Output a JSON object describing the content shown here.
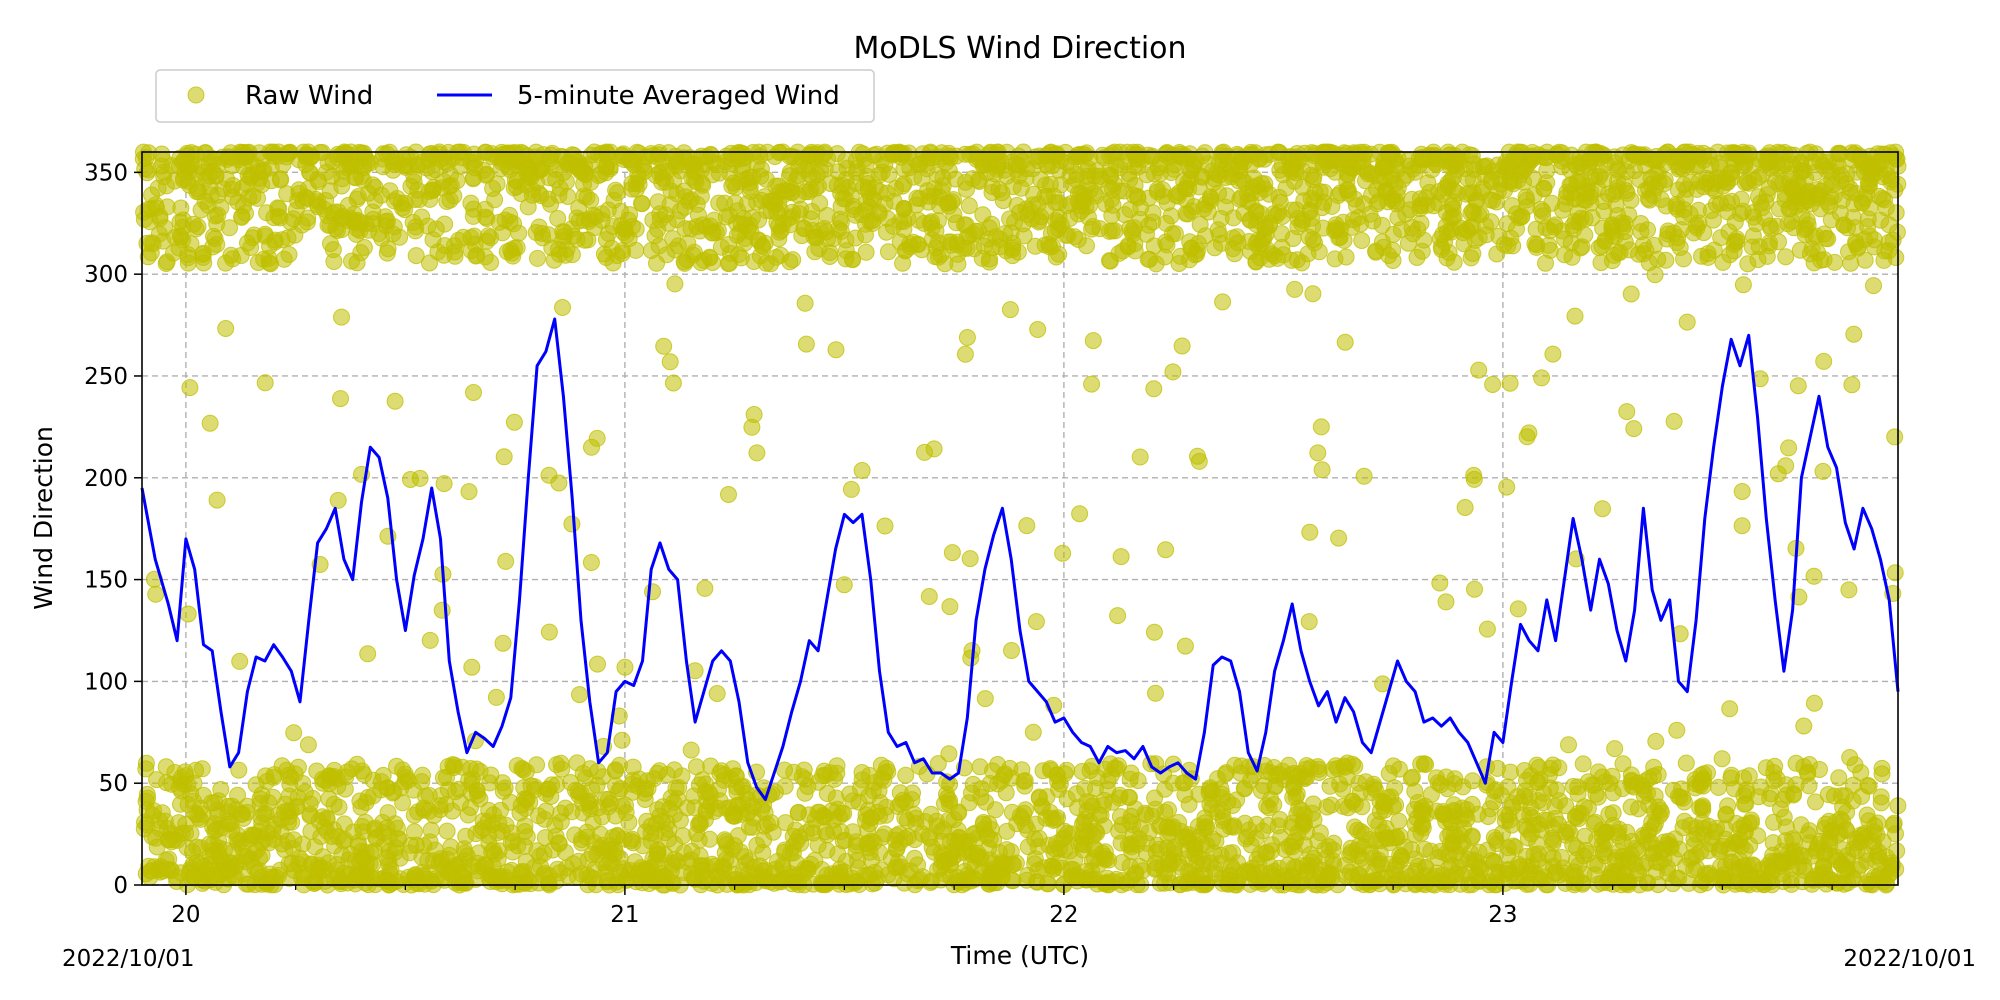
{
  "chart_data": {
    "type": "scatter",
    "title": "MoDLS Wind Direction",
    "xlabel": "Time (UTC)",
    "ylabel": "Wind Direction",
    "x_unit": "day of month (UTC), 2022/10",
    "xlim": [
      19.9,
      23.9
    ],
    "ylim": [
      0,
      360
    ],
    "x_ticks": [
      20,
      21,
      22,
      23
    ],
    "x_tick_labels": [
      "20",
      "21",
      "22",
      "23"
    ],
    "x_minor_ticks": [
      20.25,
      20.5,
      20.75,
      21.25,
      21.5,
      21.75,
      22.25,
      22.5,
      22.75,
      23.25,
      23.5,
      23.75
    ],
    "y_ticks": [
      0,
      50,
      100,
      150,
      200,
      250,
      300,
      350
    ],
    "corner_labels": {
      "left": "2022/10/01",
      "right": "2022/10/01"
    },
    "grid": true,
    "legend_position": "top-left",
    "series": [
      {
        "name": "Raw Wind",
        "kind": "scatter",
        "color": "#bfbf00",
        "alpha": 0.55,
        "description": "Dense raw points clustered near 0-60 and 300-360 degrees across the whole period, with sparse scattered points between"
      },
      {
        "name": "5-minute Averaged Wind",
        "kind": "line",
        "color": "#0000ff",
        "points": [
          [
            19.9,
            195
          ],
          [
            19.93,
            160
          ],
          [
            19.96,
            138
          ],
          [
            19.98,
            120
          ],
          [
            20.0,
            170
          ],
          [
            20.02,
            155
          ],
          [
            20.04,
            118
          ],
          [
            20.06,
            115
          ],
          [
            20.08,
            85
          ],
          [
            20.1,
            58
          ],
          [
            20.12,
            65
          ],
          [
            20.14,
            95
          ],
          [
            20.16,
            112
          ],
          [
            20.18,
            110
          ],
          [
            20.2,
            118
          ],
          [
            20.22,
            112
          ],
          [
            20.24,
            105
          ],
          [
            20.26,
            90
          ],
          [
            20.28,
            130
          ],
          [
            20.3,
            168
          ],
          [
            20.32,
            175
          ],
          [
            20.34,
            185
          ],
          [
            20.36,
            160
          ],
          [
            20.38,
            150
          ],
          [
            20.4,
            188
          ],
          [
            20.42,
            215
          ],
          [
            20.44,
            210
          ],
          [
            20.46,
            190
          ],
          [
            20.48,
            150
          ],
          [
            20.5,
            125
          ],
          [
            20.52,
            152
          ],
          [
            20.54,
            170
          ],
          [
            20.56,
            195
          ],
          [
            20.58,
            170
          ],
          [
            20.6,
            110
          ],
          [
            20.62,
            85
          ],
          [
            20.64,
            65
          ],
          [
            20.66,
            75
          ],
          [
            20.68,
            72
          ],
          [
            20.7,
            68
          ],
          [
            20.72,
            78
          ],
          [
            20.74,
            92
          ],
          [
            20.76,
            140
          ],
          [
            20.78,
            200
          ],
          [
            20.8,
            255
          ],
          [
            20.82,
            262
          ],
          [
            20.84,
            278
          ],
          [
            20.86,
            240
          ],
          [
            20.88,
            190
          ],
          [
            20.9,
            130
          ],
          [
            20.92,
            90
          ],
          [
            20.94,
            60
          ],
          [
            20.96,
            65
          ],
          [
            20.98,
            95
          ],
          [
            21.0,
            100
          ],
          [
            21.02,
            98
          ],
          [
            21.04,
            110
          ],
          [
            21.06,
            155
          ],
          [
            21.08,
            168
          ],
          [
            21.1,
            155
          ],
          [
            21.12,
            150
          ],
          [
            21.14,
            110
          ],
          [
            21.16,
            80
          ],
          [
            21.18,
            95
          ],
          [
            21.2,
            110
          ],
          [
            21.22,
            115
          ],
          [
            21.24,
            110
          ],
          [
            21.26,
            90
          ],
          [
            21.28,
            60
          ],
          [
            21.3,
            48
          ],
          [
            21.32,
            42
          ],
          [
            21.34,
            55
          ],
          [
            21.36,
            68
          ],
          [
            21.38,
            85
          ],
          [
            21.4,
            100
          ],
          [
            21.42,
            120
          ],
          [
            21.44,
            115
          ],
          [
            21.46,
            140
          ],
          [
            21.48,
            165
          ],
          [
            21.5,
            182
          ],
          [
            21.52,
            178
          ],
          [
            21.54,
            182
          ],
          [
            21.56,
            150
          ],
          [
            21.58,
            105
          ],
          [
            21.6,
            75
          ],
          [
            21.62,
            68
          ],
          [
            21.64,
            70
          ],
          [
            21.66,
            60
          ],
          [
            21.68,
            62
          ],
          [
            21.7,
            55
          ],
          [
            21.72,
            55
          ],
          [
            21.74,
            52
          ],
          [
            21.76,
            55
          ],
          [
            21.78,
            82
          ],
          [
            21.8,
            130
          ],
          [
            21.82,
            155
          ],
          [
            21.84,
            172
          ],
          [
            21.86,
            185
          ],
          [
            21.88,
            160
          ],
          [
            21.9,
            125
          ],
          [
            21.92,
            100
          ],
          [
            21.94,
            95
          ],
          [
            21.96,
            90
          ],
          [
            21.98,
            80
          ],
          [
            22.0,
            82
          ],
          [
            22.02,
            75
          ],
          [
            22.04,
            70
          ],
          [
            22.06,
            68
          ],
          [
            22.08,
            60
          ],
          [
            22.1,
            68
          ],
          [
            22.12,
            65
          ],
          [
            22.14,
            66
          ],
          [
            22.16,
            62
          ],
          [
            22.18,
            68
          ],
          [
            22.2,
            58
          ],
          [
            22.22,
            55
          ],
          [
            22.24,
            58
          ],
          [
            22.26,
            60
          ],
          [
            22.28,
            55
          ],
          [
            22.3,
            52
          ],
          [
            22.32,
            75
          ],
          [
            22.34,
            108
          ],
          [
            22.36,
            112
          ],
          [
            22.38,
            110
          ],
          [
            22.4,
            95
          ],
          [
            22.42,
            65
          ],
          [
            22.44,
            56
          ],
          [
            22.46,
            75
          ],
          [
            22.48,
            105
          ],
          [
            22.5,
            120
          ],
          [
            22.52,
            138
          ],
          [
            22.54,
            115
          ],
          [
            22.56,
            100
          ],
          [
            22.58,
            88
          ],
          [
            22.6,
            95
          ],
          [
            22.62,
            80
          ],
          [
            22.64,
            92
          ],
          [
            22.66,
            85
          ],
          [
            22.68,
            70
          ],
          [
            22.7,
            65
          ],
          [
            22.72,
            80
          ],
          [
            22.74,
            95
          ],
          [
            22.76,
            110
          ],
          [
            22.78,
            100
          ],
          [
            22.8,
            95
          ],
          [
            22.82,
            80
          ],
          [
            22.84,
            82
          ],
          [
            22.86,
            78
          ],
          [
            22.88,
            82
          ],
          [
            22.9,
            75
          ],
          [
            22.92,
            70
          ],
          [
            22.94,
            60
          ],
          [
            22.96,
            50
          ],
          [
            22.98,
            75
          ],
          [
            23.0,
            70
          ],
          [
            23.02,
            100
          ],
          [
            23.04,
            128
          ],
          [
            23.06,
            120
          ],
          [
            23.08,
            115
          ],
          [
            23.1,
            140
          ],
          [
            23.12,
            120
          ],
          [
            23.14,
            150
          ],
          [
            23.16,
            180
          ],
          [
            23.18,
            160
          ],
          [
            23.2,
            135
          ],
          [
            23.22,
            160
          ],
          [
            23.24,
            148
          ],
          [
            23.26,
            125
          ],
          [
            23.28,
            110
          ],
          [
            23.3,
            135
          ],
          [
            23.32,
            185
          ],
          [
            23.34,
            145
          ],
          [
            23.36,
            130
          ],
          [
            23.38,
            140
          ],
          [
            23.4,
            100
          ],
          [
            23.42,
            95
          ],
          [
            23.44,
            130
          ],
          [
            23.46,
            180
          ],
          [
            23.48,
            215
          ],
          [
            23.5,
            245
          ],
          [
            23.52,
            268
          ],
          [
            23.54,
            255
          ],
          [
            23.56,
            270
          ],
          [
            23.58,
            230
          ],
          [
            23.6,
            180
          ],
          [
            23.62,
            140
          ],
          [
            23.64,
            105
          ],
          [
            23.66,
            135
          ],
          [
            23.68,
            200
          ],
          [
            23.7,
            220
          ],
          [
            23.72,
            240
          ],
          [
            23.74,
            215
          ],
          [
            23.76,
            205
          ],
          [
            23.78,
            178
          ],
          [
            23.8,
            165
          ],
          [
            23.82,
            185
          ],
          [
            23.84,
            175
          ],
          [
            23.86,
            160
          ],
          [
            23.88,
            140
          ],
          [
            23.9,
            95
          ]
        ]
      }
    ]
  }
}
